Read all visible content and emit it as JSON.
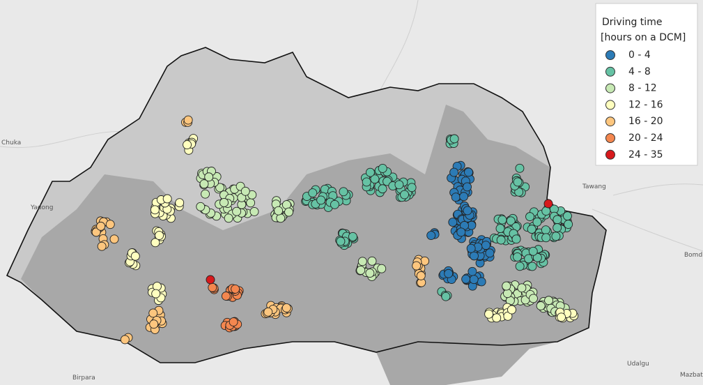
{
  "legend": {
    "title": "Driving time",
    "subtitle": "[hours on a DCM]",
    "items": [
      {
        "label": "0 - 4",
        "color": "#2c7bb6"
      },
      {
        "label": "4 - 8",
        "color": "#66c2a4"
      },
      {
        "label": "8 - 12",
        "color": "#c7e9b4"
      },
      {
        "label": "12 - 16",
        "color": "#ffffbf"
      },
      {
        "label": "16 - 20",
        "color": "#fdc67e"
      },
      {
        "label": "20 - 24",
        "color": "#f4874f"
      },
      {
        "label": "24 - 35",
        "color": "#d7191c"
      }
    ]
  },
  "places": [
    "Tawang",
    "Bomdil",
    "Udalgu",
    "Mazbat",
    "Birpara",
    "Yadong",
    "Chuka"
  ]
}
